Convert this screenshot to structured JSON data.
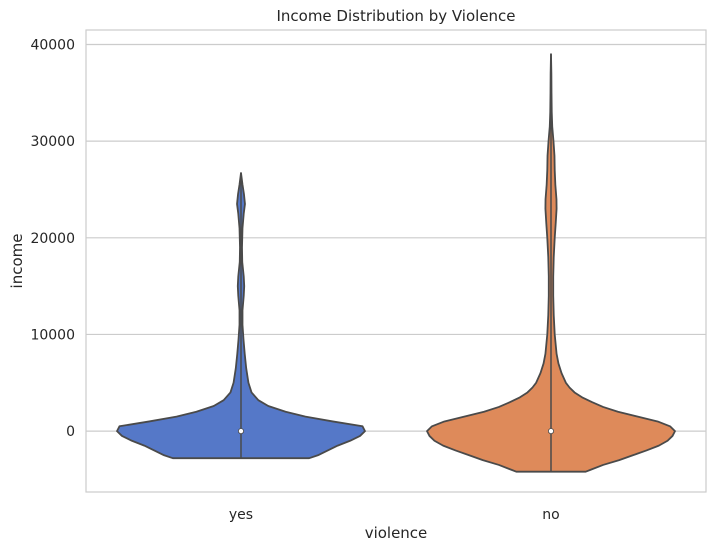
{
  "chart_data": {
    "type": "violin",
    "title": "Income Distribution by Violence",
    "xlabel": "violence",
    "ylabel": "income",
    "categories": [
      "yes",
      "no"
    ],
    "ylim": [
      -6300,
      41500
    ],
    "yticks": [
      0,
      10000,
      20000,
      30000,
      40000
    ],
    "grid": "horizontal",
    "colors": {
      "yes": "#5578c8",
      "no": "#de8a5a",
      "outline": "#4a4a4a",
      "grid": "#cccccc",
      "frame": "#cccccc"
    },
    "violins": [
      {
        "category": "yes",
        "median": 0,
        "range": [
          -2800,
          26700
        ],
        "profile": [
          [
            -2800,
            0.55
          ],
          [
            -2500,
            0.62
          ],
          [
            -2000,
            0.7
          ],
          [
            -1500,
            0.78
          ],
          [
            -1000,
            0.88
          ],
          [
            -500,
            0.96
          ],
          [
            0,
            1.0
          ],
          [
            500,
            0.98
          ],
          [
            1000,
            0.74
          ],
          [
            1500,
            0.52
          ],
          [
            2000,
            0.36
          ],
          [
            2600,
            0.22
          ],
          [
            3200,
            0.14
          ],
          [
            4000,
            0.085
          ],
          [
            5000,
            0.06
          ],
          [
            6500,
            0.042
          ],
          [
            8000,
            0.03
          ],
          [
            9500,
            0.02
          ],
          [
            11000,
            0.012
          ],
          [
            12500,
            0.012
          ],
          [
            14000,
            0.022
          ],
          [
            15000,
            0.026
          ],
          [
            16000,
            0.022
          ],
          [
            17500,
            0.01
          ],
          [
            19000,
            0.008
          ],
          [
            21000,
            0.012
          ],
          [
            22500,
            0.022
          ],
          [
            23500,
            0.032
          ],
          [
            24500,
            0.024
          ],
          [
            25500,
            0.012
          ],
          [
            26700,
            0.0
          ]
        ]
      },
      {
        "category": "no",
        "median": 0,
        "range": [
          -4200,
          39000
        ],
        "profile": [
          [
            -4200,
            0.28
          ],
          [
            -4000,
            0.32
          ],
          [
            -3500,
            0.42
          ],
          [
            -3000,
            0.55
          ],
          [
            -2500,
            0.66
          ],
          [
            -2000,
            0.77
          ],
          [
            -1500,
            0.87
          ],
          [
            -1000,
            0.94
          ],
          [
            -500,
            0.98
          ],
          [
            0,
            1.0
          ],
          [
            500,
            0.96
          ],
          [
            1000,
            0.86
          ],
          [
            1500,
            0.7
          ],
          [
            2000,
            0.54
          ],
          [
            2500,
            0.42
          ],
          [
            3000,
            0.33
          ],
          [
            3500,
            0.25
          ],
          [
            4000,
            0.19
          ],
          [
            4500,
            0.15
          ],
          [
            5000,
            0.12
          ],
          [
            6000,
            0.085
          ],
          [
            7000,
            0.06
          ],
          [
            8000,
            0.045
          ],
          [
            10000,
            0.03
          ],
          [
            12000,
            0.022
          ],
          [
            14000,
            0.018
          ],
          [
            16000,
            0.018
          ],
          [
            18000,
            0.022
          ],
          [
            20000,
            0.03
          ],
          [
            21500,
            0.038
          ],
          [
            23000,
            0.045
          ],
          [
            24000,
            0.044
          ],
          [
            25500,
            0.035
          ],
          [
            27000,
            0.03
          ],
          [
            28500,
            0.028
          ],
          [
            30000,
            0.02
          ],
          [
            31500,
            0.01
          ],
          [
            33000,
            0.006
          ],
          [
            35000,
            0.004
          ],
          [
            37000,
            0.003
          ],
          [
            39000,
            0.0
          ]
        ]
      }
    ]
  }
}
